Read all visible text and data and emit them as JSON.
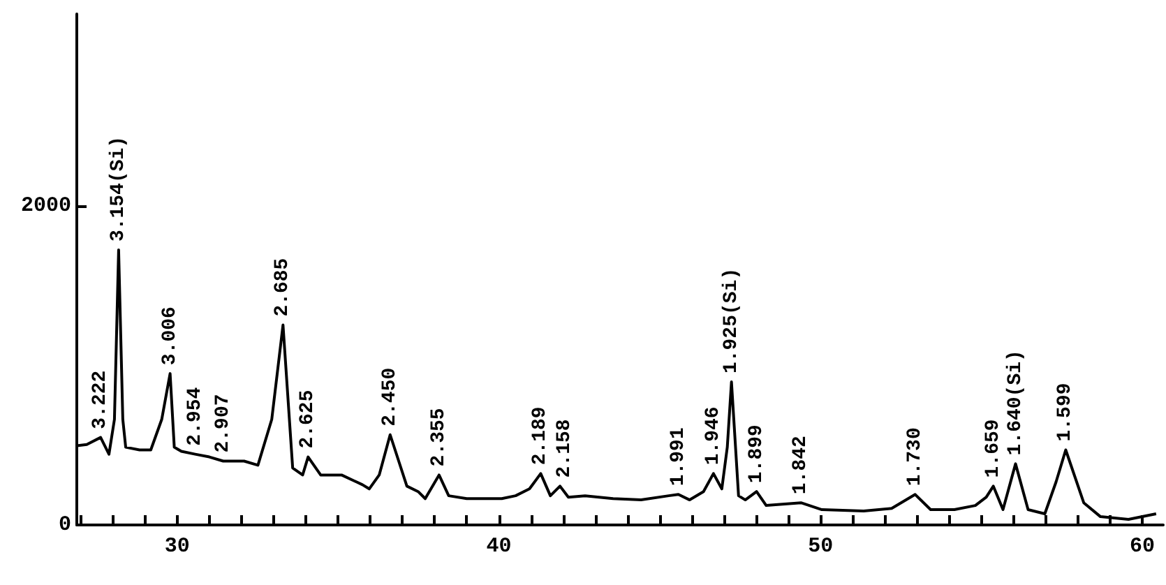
{
  "chart_data": {
    "type": "line",
    "color": "#000000",
    "marker": "none",
    "line_style": "solid",
    "grid": false,
    "x": [
      26.88,
      27.19,
      27.62,
      27.88,
      28.05,
      28.18,
      28.31,
      28.4,
      28.83,
      29.18,
      29.52,
      29.78,
      29.91,
      30.13,
      30.56,
      31.0,
      31.43,
      32.08,
      32.51,
      32.94,
      33.29,
      33.59,
      33.9,
      34.07,
      34.46,
      35.11,
      35.76,
      35.97,
      36.28,
      36.62,
      37.14,
      37.49,
      37.71,
      38.14,
      38.44,
      39.0,
      40.09,
      40.52,
      40.95,
      41.3,
      41.6,
      41.9,
      42.16,
      42.68,
      43.55,
      44.42,
      45.28,
      45.58,
      45.93,
      46.36,
      46.67,
      46.93,
      47.1,
      47.23,
      47.45,
      47.66,
      48.01,
      48.31,
      49.39,
      50.04,
      51.34,
      52.21,
      52.94,
      53.42,
      54.16,
      54.81,
      55.15,
      55.37,
      55.67,
      56.06,
      56.45,
      56.97,
      57.32,
      57.62,
      58.18,
      58.7,
      59.57,
      60.43
    ],
    "values": [
      496,
      504,
      548,
      443,
      661,
      1722,
      661,
      487,
      470,
      470,
      661,
      948,
      487,
      461,
      443,
      426,
      400,
      400,
      374,
      661,
      1252,
      357,
      313,
      426,
      313,
      313,
      252,
      226,
      313,
      565,
      243,
      209,
      165,
      313,
      183,
      165,
      165,
      183,
      226,
      322,
      183,
      243,
      174,
      183,
      165,
      157,
      183,
      191,
      157,
      209,
      322,
      226,
      487,
      896,
      183,
      157,
      209,
      122,
      139,
      96,
      87,
      104,
      191,
      96,
      96,
      122,
      174,
      243,
      96,
      383,
      96,
      70,
      270,
      470,
      139,
      52,
      35,
      70
    ],
    "xlim": [
      26.88,
      60.65
    ],
    "ylim": [
      0,
      3200
    ],
    "xticks": [
      {
        "value": 27,
        "label": null
      },
      {
        "value": 28,
        "label": null
      },
      {
        "value": 29,
        "label": null
      },
      30,
      {
        "value": 31,
        "label": null
      },
      {
        "value": 32,
        "label": null
      },
      {
        "value": 33,
        "label": null
      },
      {
        "value": 34,
        "label": null
      },
      {
        "value": 35,
        "label": null
      },
      {
        "value": 36,
        "label": null
      },
      {
        "value": 37,
        "label": null
      },
      {
        "value": 38,
        "label": null
      },
      {
        "value": 39,
        "label": null
      },
      40,
      {
        "value": 41,
        "label": null
      },
      {
        "value": 42,
        "label": null
      },
      {
        "value": 43,
        "label": null
      },
      {
        "value": 44,
        "label": null
      },
      {
        "value": 45,
        "label": null
      },
      {
        "value": 46,
        "label": null
      },
      {
        "value": 47,
        "label": null
      },
      {
        "value": 48,
        "label": null
      },
      {
        "value": 49,
        "label": null
      },
      50,
      {
        "value": 51,
        "label": null
      },
      {
        "value": 52,
        "label": null
      },
      {
        "value": 53,
        "label": null
      },
      {
        "value": 54,
        "label": null
      },
      {
        "value": 55,
        "label": null
      },
      {
        "value": 56,
        "label": null
      },
      {
        "value": 57,
        "label": null
      },
      {
        "value": 58,
        "label": null
      },
      {
        "value": 59,
        "label": null
      },
      60
    ],
    "yticks": [
      0,
      2000
    ],
    "annotations": [
      {
        "text": "3.222",
        "x": 27.62,
        "y": 548
      },
      {
        "text": "3.154(Si)",
        "x": 28.18,
        "y": 1722
      },
      {
        "text": "3.006",
        "x": 29.78,
        "y": 948
      },
      {
        "text": "2.954",
        "x": 30.56,
        "y": 443
      },
      {
        "text": "2.907",
        "x": 31.43,
        "y": 400
      },
      {
        "text": "2.685",
        "x": 33.29,
        "y": 1252
      },
      {
        "text": "2.625",
        "x": 34.07,
        "y": 426
      },
      {
        "text": "2.450",
        "x": 36.62,
        "y": 565
      },
      {
        "text": "2.355",
        "x": 38.14,
        "y": 313
      },
      {
        "text": "2.189",
        "x": 41.3,
        "y": 322
      },
      {
        "text": "2.158",
        "x": 42.05,
        "y": 243
      },
      {
        "text": "1.991",
        "x": 45.58,
        "y": 191
      },
      {
        "text": "1.946",
        "x": 46.67,
        "y": 322
      },
      {
        "text": "1.925(Si)",
        "x": 47.23,
        "y": 896
      },
      {
        "text": "1.899",
        "x": 48.01,
        "y": 209
      },
      {
        "text": "1.842",
        "x": 49.39,
        "y": 139
      },
      {
        "text": "1.730",
        "x": 52.94,
        "y": 191
      },
      {
        "text": "1.659",
        "x": 55.37,
        "y": 243
      },
      {
        "text": "1.640(Si)",
        "x": 56.06,
        "y": 383
      },
      {
        "text": "1.599",
        "x": 57.62,
        "y": 470
      }
    ]
  }
}
